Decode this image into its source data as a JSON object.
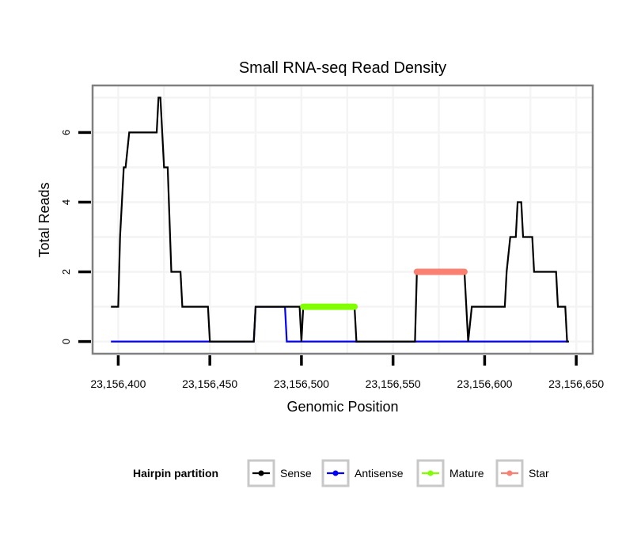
{
  "chart_data": {
    "type": "line",
    "title": "Small RNA-seq Read Density",
    "xlabel": "Genomic Position",
    "ylabel": "Total Reads",
    "xlim": [
      23156386,
      23156659
    ],
    "ylim": [
      -0.35,
      7.35
    ],
    "x_ticks": [
      23156400,
      23156450,
      23156500,
      23156550,
      23156600,
      23156650
    ],
    "x_tick_labels": [
      "23,156,400",
      "23,156,450",
      "23,156,500",
      "23,156,550",
      "23,156,600",
      "23,156,650"
    ],
    "y_ticks": [
      0,
      2,
      4,
      6
    ],
    "y_tick_labels": [
      "0",
      "2",
      "4",
      "6"
    ],
    "grid": true,
    "legend": {
      "title": "Hairpin partition",
      "placement": "bottom",
      "entries": [
        "Sense",
        "Antisense",
        "Mature",
        "Star"
      ]
    },
    "series": [
      {
        "name": "Sense",
        "color": "#000000",
        "x": [
          23156396,
          23156400,
          23156401,
          23156403,
          23156404,
          23156406,
          23156421,
          23156422,
          23156423,
          23156425,
          23156427,
          23156429,
          23156434,
          23156435,
          23156449,
          23156450,
          23156474,
          23156475,
          23156499,
          23156500,
          23156501,
          23156529,
          23156530,
          23156562,
          23156563,
          23156589,
          23156591,
          23156593,
          23156611,
          23156612,
          23156614,
          23156617,
          23156618,
          23156620,
          23156621,
          23156626,
          23156627,
          23156639,
          23156640,
          23156644,
          23156645,
          23156646
        ],
        "y": [
          1,
          1,
          3,
          5,
          5,
          6,
          6,
          7,
          7,
          5,
          5,
          2,
          2,
          1,
          1,
          0,
          0,
          1,
          1,
          0,
          1,
          1,
          0,
          0,
          2,
          2,
          0,
          1,
          1,
          2,
          3,
          3,
          4,
          4,
          3,
          3,
          2,
          2,
          1,
          1,
          0,
          0
        ]
      },
      {
        "name": "Antisense",
        "color": "#0000ff",
        "x": [
          23156396,
          23156474,
          23156475,
          23156491,
          23156492,
          23156645
        ],
        "y": [
          0,
          0,
          1,
          1,
          0,
          0
        ]
      },
      {
        "name": "Mature",
        "color": "#7fff00",
        "x": [
          23156501,
          23156529
        ],
        "y": [
          1,
          1
        ]
      },
      {
        "name": "Star",
        "color": "#fa8072",
        "x": [
          23156563,
          23156589
        ],
        "y": [
          2,
          2
        ]
      }
    ]
  }
}
